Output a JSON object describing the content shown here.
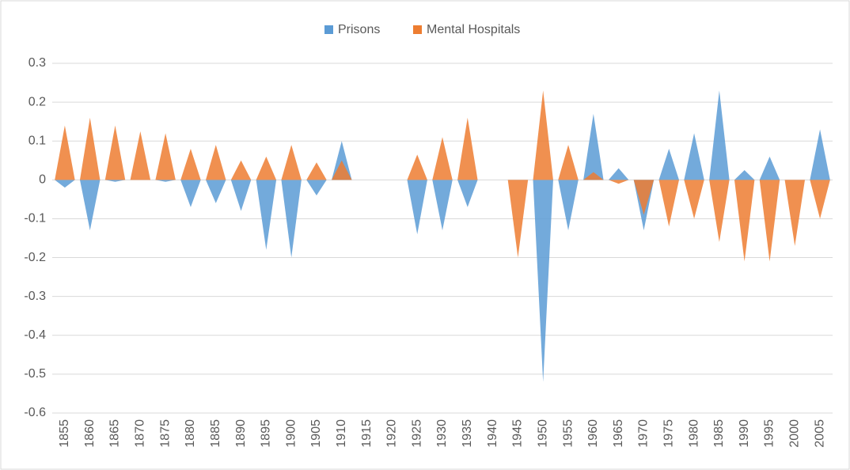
{
  "chart_data": {
    "type": "area",
    "categories": [
      "1855",
      "1860",
      "1865",
      "1870",
      "1875",
      "1880",
      "1885",
      "1890",
      "1895",
      "1900",
      "1905",
      "1910",
      "1915",
      "1920",
      "1925",
      "1930",
      "1935",
      "1940",
      "1945",
      "1950",
      "1955",
      "1960",
      "1965",
      "1970",
      "1975",
      "1980",
      "1985",
      "1990",
      "1995",
      "2000",
      "2005"
    ],
    "series": [
      {
        "name": "Prisons",
        "color": "#5b9bd5",
        "values": [
          -0.02,
          -0.13,
          -0.005,
          0,
          -0.005,
          -0.07,
          -0.06,
          -0.08,
          -0.18,
          -0.2,
          -0.04,
          0.1,
          null,
          null,
          -0.14,
          -0.13,
          -0.07,
          null,
          0,
          -0.52,
          -0.13,
          0.17,
          0.03,
          -0.13,
          0.08,
          0.12,
          0.23,
          0.025,
          0.06,
          0,
          0.13
        ]
      },
      {
        "name": "Mental Hospitals",
        "color": "#ed7d31",
        "values": [
          0.14,
          0.16,
          0.14,
          0.125,
          0.12,
          0.08,
          0.09,
          0.05,
          0.06,
          0.09,
          0.045,
          0.05,
          null,
          null,
          0.065,
          0.11,
          0.16,
          null,
          -0.2,
          0.23,
          0.09,
          0.02,
          -0.01,
          -0.09,
          -0.12,
          -0.1,
          -0.16,
          -0.21,
          -0.21,
          -0.17,
          -0.1
        ]
      }
    ],
    "ylim": [
      -0.6,
      0.3
    ],
    "yticks": [
      -0.6,
      -0.5,
      -0.4,
      -0.3,
      -0.2,
      -0.1,
      0,
      0.1,
      0.2,
      0.3
    ],
    "grid": true,
    "legend": "top"
  }
}
